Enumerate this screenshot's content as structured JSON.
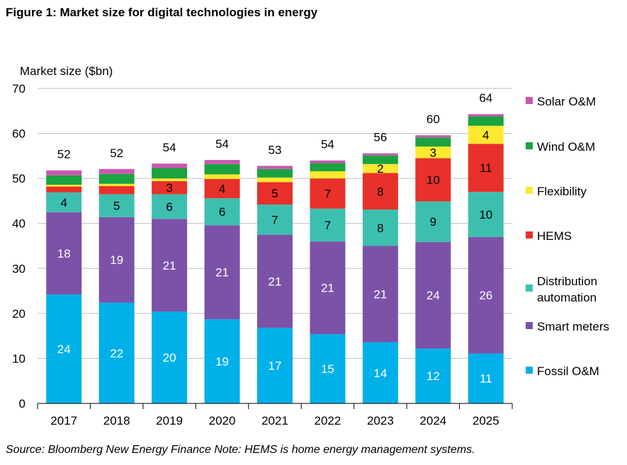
{
  "figure_title": "Figure 1:  Market size for digital technologies in energy",
  "source_note": "Source: Bloomberg New Energy Finance Note: HEMS is home energy management systems.",
  "chart_data": {
    "type": "bar",
    "stacked": true,
    "title": "",
    "ylabel": "Market size ($bn)",
    "xlabel": "",
    "ylim": [
      0,
      70
    ],
    "yticks": [
      0,
      10,
      20,
      30,
      40,
      50,
      60,
      70
    ],
    "grid": true,
    "legend_position": "right",
    "categories": [
      "2017",
      "2018",
      "2019",
      "2020",
      "2021",
      "2022",
      "2023",
      "2024",
      "2025"
    ],
    "totals": [
      52,
      52,
      54,
      54,
      53,
      54,
      56,
      60,
      64
    ],
    "series": [
      {
        "name": "Fossil O&M",
        "color": "#00b0e8",
        "values": [
          24.2,
          22.4,
          20.4,
          18.7,
          16.8,
          15.4,
          13.6,
          12.2,
          11.1
        ],
        "labels": [
          "24",
          "22",
          "20",
          "19",
          "17",
          "15",
          "14",
          "12",
          "11"
        ]
      },
      {
        "name": "Smart meters",
        "color": "#7b52a8",
        "values": [
          18.3,
          19.0,
          20.6,
          20.9,
          20.7,
          20.6,
          21.4,
          23.7,
          25.9
        ],
        "labels": [
          "18",
          "19",
          "21",
          "21",
          "21",
          "21",
          "21",
          "24",
          "26"
        ]
      },
      {
        "name": "Distribution automation",
        "color": "#3dbfb0",
        "values": [
          4.4,
          5.1,
          5.5,
          6.0,
          6.7,
          7.3,
          8.1,
          9.0,
          10.0
        ],
        "labels": [
          "4",
          "5",
          "6",
          "6",
          "7",
          "7",
          "8",
          "9",
          "10"
        ]
      },
      {
        "name": "HEMS",
        "color": "#e8312a",
        "values": [
          1.3,
          1.8,
          2.9,
          4.3,
          5.0,
          6.7,
          8.1,
          9.6,
          10.7
        ],
        "labels": [
          "",
          "",
          "3",
          "4",
          "5",
          "7",
          "8",
          "10",
          "11"
        ]
      },
      {
        "name": "Flexibility",
        "color": "#ffe930",
        "values": [
          0.4,
          0.5,
          0.6,
          1.0,
          1.0,
          1.6,
          2.0,
          2.6,
          4.0
        ],
        "labels": [
          "",
          "",
          "",
          "",
          "",
          "",
          "2",
          "3",
          "4"
        ]
      },
      {
        "name": "Wind O&M",
        "color": "#1aa340",
        "values": [
          2.1,
          2.2,
          2.3,
          2.3,
          1.9,
          1.8,
          1.9,
          2.0,
          2.1
        ],
        "labels": [
          "",
          "",
          "",
          "",
          "",
          "",
          "",
          "",
          ""
        ]
      },
      {
        "name": "Solar O&M",
        "color": "#c958b0",
        "values": [
          1.1,
          1.1,
          1.0,
          0.9,
          0.7,
          0.6,
          0.5,
          0.5,
          0.5
        ],
        "labels": [
          "",
          "",
          "",
          "",
          "",
          "",
          "",
          "",
          ""
        ]
      }
    ],
    "legend_order": [
      "Solar O&M",
      "Wind O&M",
      "Flexibility",
      "HEMS",
      "Distribution automation",
      "Smart meters",
      "Fossil O&M"
    ],
    "label_colors": {
      "dark": "#000000",
      "light": "#ffffff"
    }
  }
}
